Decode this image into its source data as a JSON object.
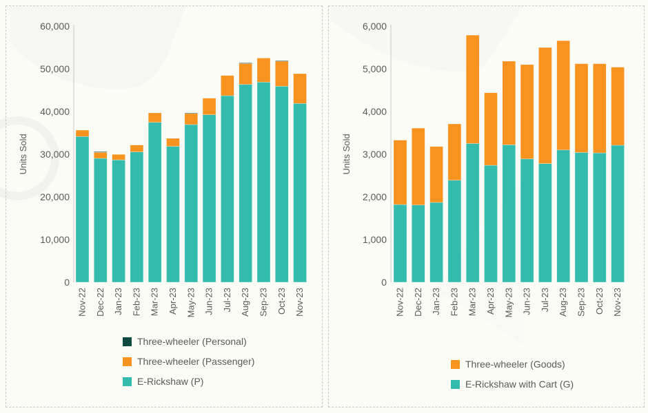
{
  "colors": {
    "personal": "#0d4a3f",
    "passenger": "#f7931e",
    "erickshaw": "#33bbad",
    "goods": "#f7931e",
    "cart": "#33bbad",
    "axis": "#d0d0d0"
  },
  "chart_data": [
    {
      "type": "bar",
      "stacked": true,
      "title": "",
      "xlabel": "",
      "ylabel": "Units Sold",
      "ylim": [
        0,
        60000
      ],
      "yticks": [
        0,
        10000,
        20000,
        30000,
        40000,
        50000,
        60000
      ],
      "ytick_labels": [
        "0",
        "10,000",
        "20,000",
        "30,000",
        "40,000",
        "50,000",
        "60,000"
      ],
      "grid": false,
      "legend_position": "bottom",
      "categories": [
        "Nov-22",
        "Dec-22",
        "Jan-23",
        "Feb-23",
        "Mar-23",
        "Apr-23",
        "May-23",
        "Jun-23",
        "Jul-23",
        "Aug-23",
        "Sep-23",
        "Oct-23",
        "Nov-23"
      ],
      "series": [
        {
          "name": "E-Rickshaw (P)",
          "color_key": "erickshaw",
          "values": [
            34150,
            29030,
            28660,
            30540,
            37470,
            31830,
            36940,
            39250,
            43710,
            46340,
            46890,
            45920,
            41890
          ]
        },
        {
          "name": "Three-wheeler (Passenger)",
          "color_key": "passenger",
          "values": [
            1500,
            1400,
            1290,
            1610,
            2210,
            1880,
            2600,
            3870,
            4730,
            4900,
            5640,
            5870,
            6980
          ]
        },
        {
          "name": "Three-wheeler (Personal)",
          "color_key": "personal",
          "values": [
            0,
            170,
            0,
            0,
            0,
            0,
            140,
            0,
            0,
            160,
            0,
            150,
            0
          ]
        }
      ],
      "legend_order": [
        "Three-wheeler (Personal)",
        "Three-wheeler (Passenger)",
        "E-Rickshaw (P)"
      ]
    },
    {
      "type": "bar",
      "stacked": true,
      "title": "",
      "xlabel": "",
      "ylabel": "Units Sold",
      "ylim": [
        0,
        6000
      ],
      "yticks": [
        0,
        1000,
        2000,
        3000,
        4000,
        5000,
        6000
      ],
      "ytick_labels": [
        "0",
        "1,000",
        "2,000",
        "3,000",
        "4,000",
        "5,000",
        "6,000"
      ],
      "grid": false,
      "legend_position": "bottom",
      "categories": [
        "Nov-22",
        "Dec-22",
        "Jan-23",
        "Feb-23",
        "Mar-23",
        "Apr-23",
        "May-23",
        "Jun-23",
        "Jul-23",
        "Aug-23",
        "Sep-23",
        "Oct-23",
        "Nov-23"
      ],
      "series": [
        {
          "name": "E-Rickshaw with Cart (G)",
          "color_key": "cart",
          "values": [
            1820,
            1810,
            1870,
            2390,
            3250,
            2740,
            3220,
            2890,
            2780,
            3100,
            3040,
            3030,
            3210
          ]
        },
        {
          "name": "Three-wheeler (Goods)",
          "color_key": "goods",
          "values": [
            1510,
            1800,
            1310,
            1320,
            2540,
            1700,
            1960,
            2210,
            2720,
            2560,
            2080,
            2090,
            1830
          ]
        }
      ],
      "legend_order": [
        "Three-wheeler (Goods)",
        "E-Rickshaw with Cart (G)"
      ]
    }
  ]
}
